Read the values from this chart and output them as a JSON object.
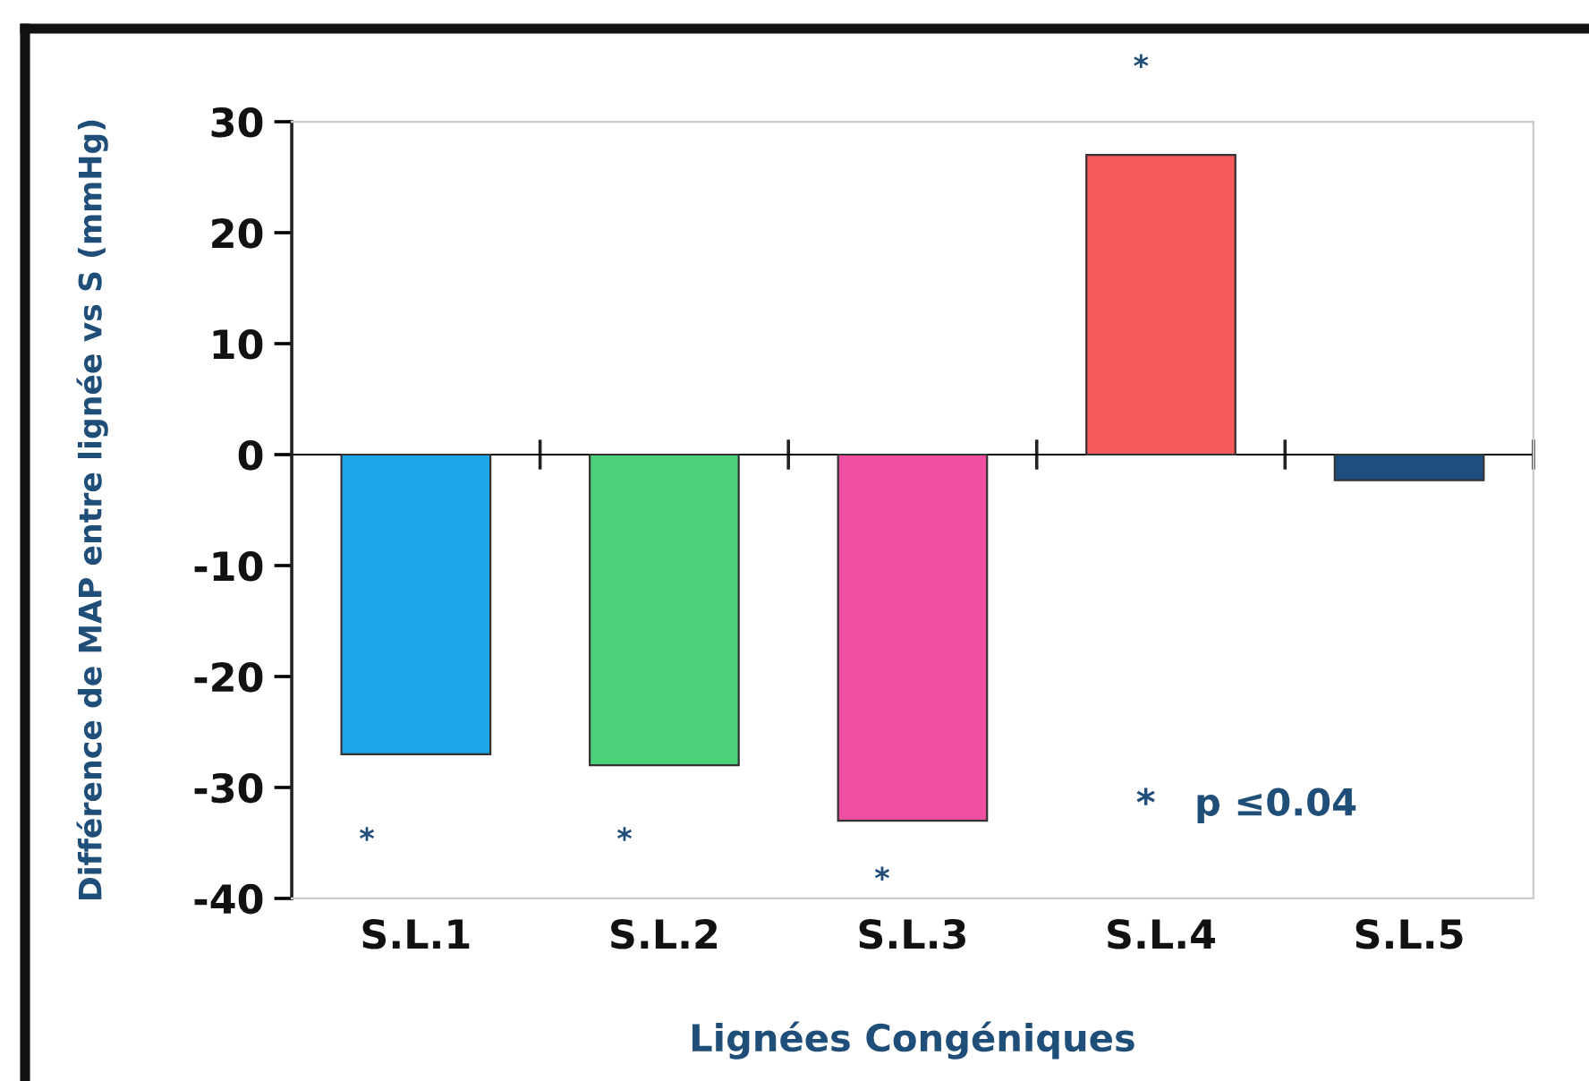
{
  "chart_data": {
    "type": "bar",
    "xlabel": "Lignées Congéniques",
    "ylabel": "Différence de MAP entre lignée vs S (mmHg)",
    "categories": [
      "S.L.1",
      "S.L.2",
      "S.L.3",
      "S.L.4",
      "S.L.5"
    ],
    "values": [
      -27,
      -28,
      -33,
      27,
      -2.3
    ],
    "colors": [
      "#1ea7e8",
      "#4cd07a",
      "#ee4fa0",
      "#f75a5a",
      "#1c4f80"
    ],
    "ylim": [
      -40,
      30
    ],
    "yticks": [
      -40,
      -30,
      -20,
      -10,
      0,
      10,
      20,
      30
    ],
    "annotations": [
      "*",
      "*",
      "*",
      "*",
      "*   p ≤0.04"
    ]
  }
}
